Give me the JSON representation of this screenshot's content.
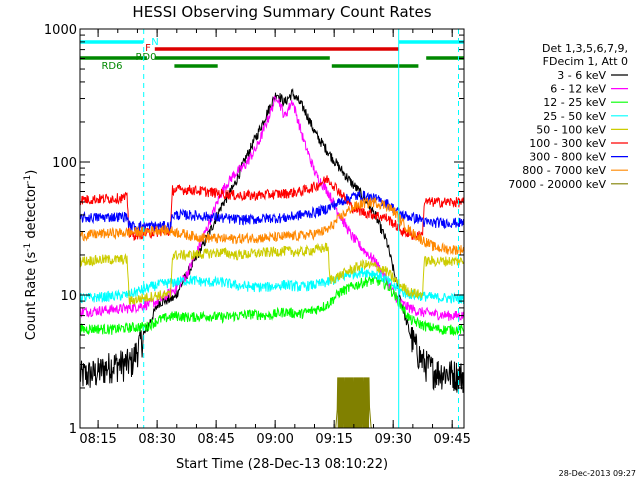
{
  "chart_data": {
    "type": "line",
    "title": "HESSI Observing Summary Count Rates",
    "xlabel": "Start Time (28-Dec-13 08:10:22)",
    "ylabel_main": "Count Rate (s",
    "ylabel_sup": "-1",
    "ylabel_mid": " detector",
    "ylabel_sup2": "-1",
    "ylabel_end": ")",
    "x_unit": "minutes after 08:10:22",
    "xlim": [
      0,
      97.6
    ],
    "ylim": [
      1,
      1000
    ],
    "yscale": "log",
    "x_ticks": [
      {
        "label": "08:15",
        "x": 4.6
      },
      {
        "label": "08:30",
        "x": 19.6
      },
      {
        "label": "08:45",
        "x": 34.6
      },
      {
        "label": "09:00",
        "x": 49.6
      },
      {
        "label": "09:15",
        "x": 64.6
      },
      {
        "label": "09:30",
        "x": 79.6
      },
      {
        "label": "09:45",
        "x": 94.6
      }
    ],
    "y_ticks": [
      {
        "label": "1",
        "y": 1
      },
      {
        "label": "10",
        "y": 10
      },
      {
        "label": "100",
        "y": 100
      },
      {
        "label": "1000",
        "y": 1000
      }
    ],
    "legend": {
      "header1": "Det 1,3,5,6,7,9,",
      "header2": "FDecim 1, Att 0",
      "placement": "right"
    },
    "series": [
      {
        "name": "3 - 6 keV",
        "color": "#000000",
        "points": [
          [
            0,
            2.5
          ],
          [
            4,
            2.6
          ],
          [
            8,
            3.0
          ],
          [
            13,
            3.1
          ],
          [
            17,
            5.6
          ],
          [
            20,
            8.8
          ],
          [
            24,
            9.5
          ],
          [
            27,
            14
          ],
          [
            30,
            20
          ],
          [
            33,
            30
          ],
          [
            36,
            47
          ],
          [
            39,
            65
          ],
          [
            42,
            105
          ],
          [
            45,
            160
          ],
          [
            48,
            250
          ],
          [
            50,
            330
          ],
          [
            52,
            280
          ],
          [
            54,
            330
          ],
          [
            57,
            250
          ],
          [
            60,
            160
          ],
          [
            63,
            120
          ],
          [
            66,
            90
          ],
          [
            69,
            70
          ],
          [
            72,
            55
          ],
          [
            75,
            40
          ],
          [
            78,
            25
          ],
          [
            80,
            14
          ],
          [
            82,
            8
          ],
          [
            84,
            5
          ],
          [
            87,
            3.2
          ],
          [
            90,
            2.7
          ],
          [
            94,
            2.6
          ],
          [
            97,
            2.5
          ]
        ]
      },
      {
        "name": "6 - 12 keV",
        "color": "#ff00ff",
        "points": [
          [
            0,
            7.5
          ],
          [
            4,
            7.6
          ],
          [
            8,
            7.8
          ],
          [
            13,
            8.0
          ],
          [
            17,
            8.5
          ],
          [
            20,
            9.0
          ],
          [
            24,
            11
          ],
          [
            27,
            14
          ],
          [
            30,
            22
          ],
          [
            33,
            36
          ],
          [
            36,
            60
          ],
          [
            39,
            80
          ],
          [
            42,
            95
          ],
          [
            45,
            130
          ],
          [
            48,
            220
          ],
          [
            50,
            320
          ],
          [
            52,
            220
          ],
          [
            54,
            290
          ],
          [
            57,
            140
          ],
          [
            60,
            80
          ],
          [
            63,
            60
          ],
          [
            66,
            40
          ],
          [
            69,
            28
          ],
          [
            72,
            22
          ],
          [
            75,
            18
          ],
          [
            78,
            13
          ],
          [
            80,
            10
          ],
          [
            82,
            8.5
          ],
          [
            86,
            7.5
          ],
          [
            90,
            7.2
          ],
          [
            94,
            7.0
          ],
          [
            97,
            7.0
          ]
        ]
      },
      {
        "name": "12 - 25 keV",
        "color": "#00ff00",
        "points": [
          [
            0,
            5.5
          ],
          [
            4,
            5.6
          ],
          [
            8,
            5.5
          ],
          [
            13,
            5.7
          ],
          [
            17,
            5.8
          ],
          [
            20,
            6.5
          ],
          [
            24,
            7.0
          ],
          [
            28,
            6.8
          ],
          [
            32,
            7.0
          ],
          [
            36,
            6.8
          ],
          [
            40,
            7.0
          ],
          [
            44,
            7.2
          ],
          [
            48,
            7.0
          ],
          [
            52,
            7.5
          ],
          [
            56,
            7.2
          ],
          [
            60,
            7.8
          ],
          [
            63,
            8.5
          ],
          [
            66,
            10.5
          ],
          [
            69,
            11.5
          ],
          [
            72,
            12.5
          ],
          [
            75,
            13
          ],
          [
            78,
            12
          ],
          [
            80,
            10
          ],
          [
            82,
            8
          ],
          [
            84,
            6.5
          ],
          [
            88,
            5.8
          ],
          [
            92,
            5.5
          ],
          [
            97,
            5.5
          ]
        ]
      },
      {
        "name": "25 - 50 keV",
        "color": "#00ffff",
        "points": [
          [
            0,
            9.5
          ],
          [
            4,
            9.6
          ],
          [
            8,
            9.8
          ],
          [
            12,
            10
          ],
          [
            16,
            11
          ],
          [
            20,
            12
          ],
          [
            24,
            12.5
          ],
          [
            28,
            13
          ],
          [
            32,
            12.5
          ],
          [
            36,
            12.5
          ],
          [
            40,
            11.8
          ],
          [
            44,
            11.5
          ],
          [
            48,
            11.5
          ],
          [
            52,
            12
          ],
          [
            56,
            11.5
          ],
          [
            60,
            12
          ],
          [
            63,
            12.5
          ],
          [
            66,
            13.5
          ],
          [
            69,
            14.5
          ],
          [
            72,
            15
          ],
          [
            75,
            14.5
          ],
          [
            78,
            13
          ],
          [
            80,
            11.5
          ],
          [
            82,
            10.5
          ],
          [
            85,
            10
          ],
          [
            90,
            9.6
          ],
          [
            97,
            9.4
          ]
        ]
      },
      {
        "name": "50 - 100 keV",
        "color": "#cccc00",
        "points": [
          [
            0,
            18
          ],
          [
            6,
            18.5
          ],
          [
            12,
            18.5
          ],
          [
            12.5,
            9.0
          ],
          [
            16,
            9.5
          ],
          [
            20,
            10
          ],
          [
            23,
            10
          ],
          [
            23.5,
            20
          ],
          [
            28,
            20
          ],
          [
            32,
            20.5
          ],
          [
            36,
            21
          ],
          [
            40,
            20
          ],
          [
            44,
            20.5
          ],
          [
            48,
            21
          ],
          [
            52,
            21.5
          ],
          [
            56,
            21
          ],
          [
            60,
            22
          ],
          [
            63,
            23
          ],
          [
            63.5,
            13
          ],
          [
            66,
            14
          ],
          [
            69,
            15.5
          ],
          [
            72,
            17
          ],
          [
            75,
            16.5
          ],
          [
            78,
            15
          ],
          [
            80,
            13
          ],
          [
            82,
            11.5
          ],
          [
            84,
            10.5
          ],
          [
            87,
            10
          ],
          [
            87.5,
            18
          ],
          [
            90,
            18
          ],
          [
            97,
            18
          ]
        ]
      },
      {
        "name": "100 - 300 keV",
        "color": "#ff0000",
        "points": [
          [
            0,
            52
          ],
          [
            6,
            53
          ],
          [
            12,
            54
          ],
          [
            12.5,
            28
          ],
          [
            16,
            29
          ],
          [
            20,
            30
          ],
          [
            23,
            30
          ],
          [
            23.5,
            62
          ],
          [
            28,
            62
          ],
          [
            32,
            60
          ],
          [
            36,
            58
          ],
          [
            40,
            56
          ],
          [
            44,
            56
          ],
          [
            48,
            57
          ],
          [
            52,
            58
          ],
          [
            56,
            60
          ],
          [
            60,
            66
          ],
          [
            63,
            75
          ],
          [
            66,
            60
          ],
          [
            69,
            46
          ],
          [
            72,
            42
          ],
          [
            75,
            40
          ],
          [
            78,
            38
          ],
          [
            80,
            34
          ],
          [
            82,
            30
          ],
          [
            85,
            28
          ],
          [
            87,
            28
          ],
          [
            87.5,
            50
          ],
          [
            92,
            50
          ],
          [
            97,
            50
          ]
        ]
      },
      {
        "name": "300 - 800 keV",
        "color": "#0000ff",
        "points": [
          [
            0,
            38
          ],
          [
            6,
            38.5
          ],
          [
            12,
            39
          ],
          [
            12.5,
            33
          ],
          [
            16,
            33
          ],
          [
            20,
            33
          ],
          [
            23,
            33
          ],
          [
            23.5,
            40
          ],
          [
            28,
            40
          ],
          [
            32,
            39
          ],
          [
            36,
            38
          ],
          [
            40,
            37
          ],
          [
            44,
            37
          ],
          [
            48,
            38
          ],
          [
            52,
            38
          ],
          [
            56,
            40
          ],
          [
            60,
            42
          ],
          [
            63,
            45
          ],
          [
            66,
            50
          ],
          [
            69,
            55
          ],
          [
            72,
            56
          ],
          [
            75,
            53
          ],
          [
            78,
            49
          ],
          [
            80,
            44
          ],
          [
            82,
            40
          ],
          [
            85,
            38
          ],
          [
            87,
            37
          ],
          [
            87.5,
            35
          ],
          [
            92,
            35
          ],
          [
            97,
            35
          ]
        ]
      },
      {
        "name": "800 - 7000 keV",
        "color": "#ff8800",
        "points": [
          [
            0,
            28
          ],
          [
            6,
            29
          ],
          [
            12,
            29.5
          ],
          [
            16,
            30
          ],
          [
            20,
            31
          ],
          [
            24,
            30
          ],
          [
            28,
            28
          ],
          [
            32,
            27
          ],
          [
            36,
            26.5
          ],
          [
            40,
            26.5
          ],
          [
            44,
            27
          ],
          [
            48,
            27
          ],
          [
            52,
            27.5
          ],
          [
            56,
            28
          ],
          [
            60,
            29
          ],
          [
            63,
            31
          ],
          [
            66,
            38
          ],
          [
            69,
            45
          ],
          [
            72,
            49
          ],
          [
            75,
            50
          ],
          [
            78,
            47
          ],
          [
            80,
            42
          ],
          [
            82,
            35
          ],
          [
            84,
            30
          ],
          [
            87,
            26
          ],
          [
            90,
            23
          ],
          [
            94,
            22
          ],
          [
            97,
            22
          ]
        ]
      },
      {
        "name": "7000 - 20000 keV",
        "color": "#808000",
        "points": [
          [
            0,
            1
          ],
          [
            64,
            1
          ],
          [
            65,
            1
          ],
          [
            66,
            2.4
          ],
          [
            73,
            2.4
          ],
          [
            74,
            1
          ],
          [
            97.6,
            1
          ]
        ]
      }
    ],
    "state_bars": [
      {
        "label": "N",
        "color": "#00ffff",
        "segments": [
          [
            0,
            16
          ],
          [
            81,
            97.6
          ]
        ]
      },
      {
        "label": "F",
        "color": "#dd0000",
        "segments": [
          [
            19,
            81
          ]
        ]
      },
      {
        "label": "RD0",
        "color": "#008800",
        "segments": [
          [
            0,
            17
          ],
          [
            19,
            63.5
          ],
          [
            88,
            97.6
          ]
        ]
      },
      {
        "label": "RD6",
        "color": "#008800",
        "segments": [
          [
            24,
            35
          ],
          [
            64,
            86
          ]
        ]
      }
    ],
    "vertical_markers": [
      {
        "color": "#00ffff",
        "style": "dashed",
        "x": 16.2
      },
      {
        "color": "#00ffff",
        "style": "solid",
        "x": 81
      },
      {
        "color": "#00ffff",
        "style": "dashed",
        "x": 96.2
      }
    ],
    "grid": false
  },
  "footer_timestamp": "28-Dec-2013 09:27"
}
